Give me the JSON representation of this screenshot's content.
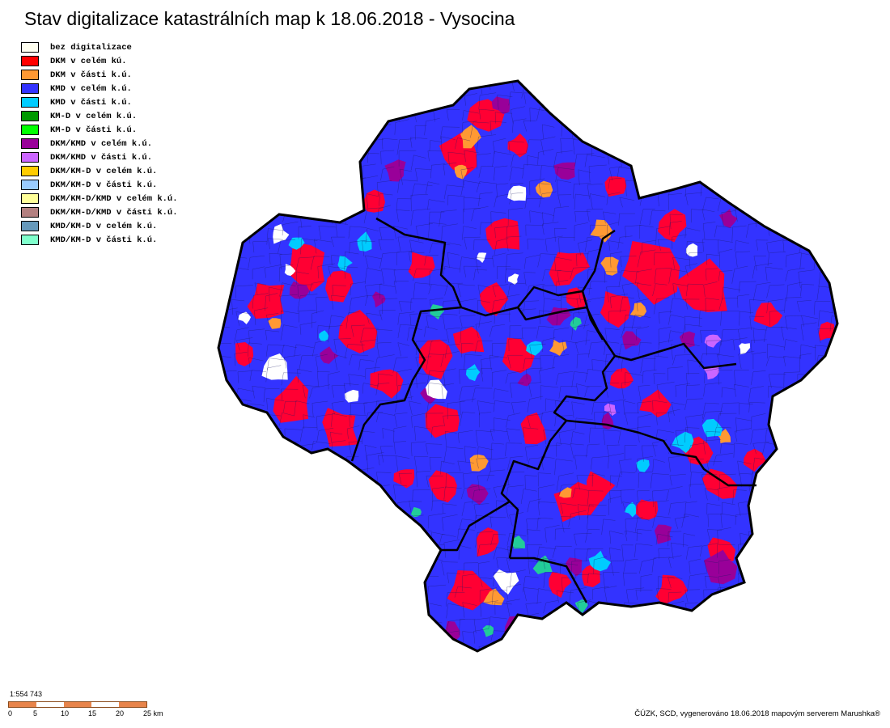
{
  "title": "Stav digitalizace katastrálních map k 18.06.2018 - Vysocina",
  "legend": [
    {
      "label": "bez digitalizace",
      "color": "#fffff0"
    },
    {
      "label": "DKM v celém kú.",
      "color": "#ff0000"
    },
    {
      "label": "DKM v části k.ú.",
      "color": "#ff9933"
    },
    {
      "label": "KMD v celém k.ú.",
      "color": "#3333ff"
    },
    {
      "label": "KMD v části k.ú.",
      "color": "#00ccff"
    },
    {
      "label": "KM-D v celém k.ú.",
      "color": "#009900"
    },
    {
      "label": "KM-D v části k.ú.",
      "color": "#00ff00"
    },
    {
      "label": "DKM/KMD v celém k.ú.",
      "color": "#990099"
    },
    {
      "label": "DKM/KMD v části k.ú.",
      "color": "#cc66ff"
    },
    {
      "label": "DKM/KM-D v celém k.ú.",
      "color": "#ffcc00"
    },
    {
      "label": "DKM/KM-D v části k.ú.",
      "color": "#99ccff"
    },
    {
      "label": "DKM/KM-D/KMD v celém k.ú.",
      "color": "#ffff99"
    },
    {
      "label": "DKM/KM-D/KMD v části k.ú.",
      "color": "#b38080"
    },
    {
      "label": "KMD/KM-D v celém k.ú.",
      "color": "#6699bb"
    },
    {
      "label": "KMD/KM-D v části k.ú.",
      "color": "#80ffcc"
    }
  ],
  "scale": {
    "ratio": "1:554 743",
    "ticks": [
      "0",
      "5",
      "10",
      "15",
      "20",
      "25 km"
    ],
    "colors": [
      "#e8844a",
      "#ffffff"
    ]
  },
  "credit": "ČÚZK, SCD, vygenerováno 18.06.2018 mapovým serverem Marushka®",
  "map_colors": {
    "base": "#3333ff",
    "dkm": "#ff0033",
    "partial_dkm": "#ff9933",
    "dkm_kmd": "#990099",
    "partial_kmd": "#00ccff",
    "partial_dkm_kmd": "#cc66ff",
    "kmd_kmd": "#22cc99",
    "none": "#ffffff",
    "border": "#000000"
  }
}
